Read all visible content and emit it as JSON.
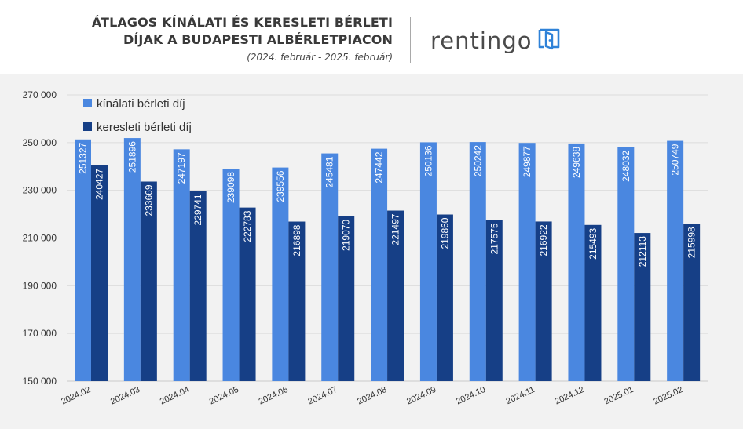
{
  "header": {
    "title_line1": "ÁTLAGOS KÍNÁLATI ÉS KERESLETI BÉRLETI",
    "title_line2": "DÍJAK A BUDAPESTI ALBÉRLETPIACON",
    "subtitle": "(2024. február - 2025. február)",
    "brand": "rentingo"
  },
  "colors": {
    "offer": "#4a87e0",
    "demand": "#163f86",
    "background": "#f2f2f2",
    "brand_icon": "#2f82d8"
  },
  "chart_data": {
    "type": "bar",
    "categories": [
      "2024.02",
      "2024.03",
      "2024.04",
      "2024.05",
      "2024.06",
      "2024.07",
      "2024.08",
      "2024.09",
      "2024.10",
      "2024.11",
      "2024.12",
      "2025.01",
      "2025.02"
    ],
    "series": [
      {
        "name": "kínálati bérleti díj",
        "values": [
          251327,
          251896,
          247197,
          239098,
          239556,
          245481,
          247442,
          250136,
          250242,
          249877,
          249638,
          248032,
          250749
        ]
      },
      {
        "name": "keresleti bérleti díj",
        "values": [
          240427,
          233669,
          229741,
          222783,
          216898,
          219070,
          221497,
          219860,
          217575,
          216922,
          215493,
          212113,
          215998
        ]
      }
    ],
    "ylim": [
      150000,
      270000
    ],
    "yticks": [
      150000,
      170000,
      190000,
      210000,
      230000,
      250000,
      270000
    ],
    "ytick_labels": [
      "150 000",
      "170 000",
      "190 000",
      "210 000",
      "230 000",
      "250 000",
      "270 000"
    ],
    "grid": true,
    "legend": "top-left"
  }
}
